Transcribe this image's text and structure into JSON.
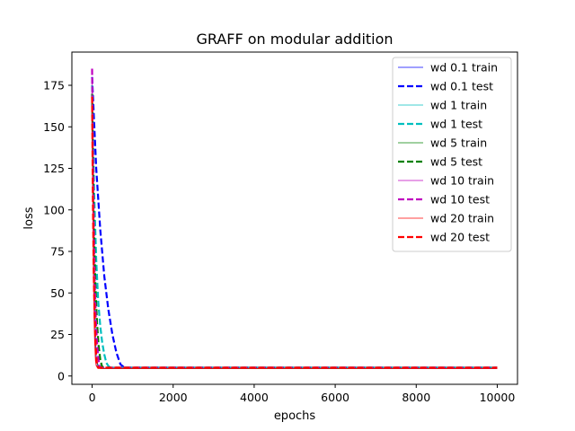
{
  "chart_data": {
    "type": "line",
    "title": "GRAFF on modular addition",
    "xlabel": "epochs",
    "ylabel": "loss",
    "xlim": [
      -500,
      10500
    ],
    "ylim": [
      -5,
      195
    ],
    "xticks": [
      0,
      2000,
      4000,
      6000,
      8000,
      10000
    ],
    "yticks": [
      0,
      25,
      50,
      75,
      100,
      125,
      150,
      175
    ],
    "grid": false,
    "legend_position": "top-right",
    "series": [
      {
        "name": "wd 0.1 train",
        "color": "#0000ff",
        "style": "solid",
        "x": [
          0,
          20,
          40,
          60,
          80,
          100,
          150,
          200,
          300,
          10000
        ],
        "y": [
          165,
          120,
          80,
          50,
          25,
          12,
          6,
          4.8,
          4.5,
          4.5
        ]
      },
      {
        "name": "wd 0.1 test",
        "color": "#0000ff",
        "style": "dashed",
        "x": [
          0,
          100,
          200,
          300,
          400,
          500,
          600,
          700,
          800,
          10000
        ],
        "y": [
          180,
          125,
          88,
          60,
          40,
          25,
          14,
          7,
          5,
          5
        ]
      },
      {
        "name": "wd 1 train",
        "color": "#00bfbf",
        "style": "solid",
        "x": [
          0,
          20,
          40,
          60,
          80,
          100,
          150,
          200,
          300,
          10000
        ],
        "y": [
          160,
          110,
          70,
          45,
          22,
          10,
          5.5,
          4.6,
          4.5,
          4.5
        ]
      },
      {
        "name": "wd 1 test",
        "color": "#00bfbf",
        "style": "dashed",
        "x": [
          0,
          50,
          100,
          150,
          200,
          250,
          300,
          350,
          400,
          450,
          10000
        ],
        "y": [
          175,
          110,
          70,
          45,
          30,
          20,
          13,
          8,
          6,
          5,
          5
        ]
      },
      {
        "name": "wd 5 train",
        "color": "#008000",
        "style": "solid",
        "x": [
          0,
          20,
          40,
          60,
          80,
          100,
          150,
          200,
          10000
        ],
        "y": [
          160,
          105,
          65,
          40,
          20,
          10,
          5.5,
          4.5,
          4.5
        ]
      },
      {
        "name": "wd 5 test",
        "color": "#008000",
        "style": "dashed",
        "x": [
          0,
          40,
          80,
          120,
          160,
          200,
          240,
          280,
          10000
        ],
        "y": [
          170,
          95,
          55,
          32,
          18,
          10,
          6,
          5,
          5
        ]
      },
      {
        "name": "wd 10 train",
        "color": "#bf00bf",
        "style": "solid",
        "x": [
          0,
          20,
          40,
          60,
          80,
          100,
          150,
          10000
        ],
        "y": [
          180,
          110,
          65,
          35,
          15,
          7,
          4.8,
          4.5
        ]
      },
      {
        "name": "wd 10 test",
        "color": "#bf00bf",
        "style": "dashed",
        "x": [
          0,
          30,
          60,
          90,
          120,
          150,
          180,
          210,
          10000
        ],
        "y": [
          185,
          110,
          60,
          35,
          20,
          11,
          6,
          5,
          5
        ]
      },
      {
        "name": "wd 20 train",
        "color": "#ff0000",
        "style": "solid",
        "x": [
          0,
          15,
          30,
          45,
          60,
          80,
          100,
          140,
          10000
        ],
        "y": [
          165,
          100,
          60,
          35,
          20,
          9,
          6,
          4.5,
          4.5
        ]
      },
      {
        "name": "wd 20 test",
        "color": "#ff0000",
        "style": "dashed",
        "x": [
          0,
          20,
          40,
          60,
          80,
          100,
          120,
          150,
          10000
        ],
        "y": [
          168,
          105,
          62,
          38,
          22,
          12,
          7,
          5,
          5
        ]
      }
    ]
  }
}
